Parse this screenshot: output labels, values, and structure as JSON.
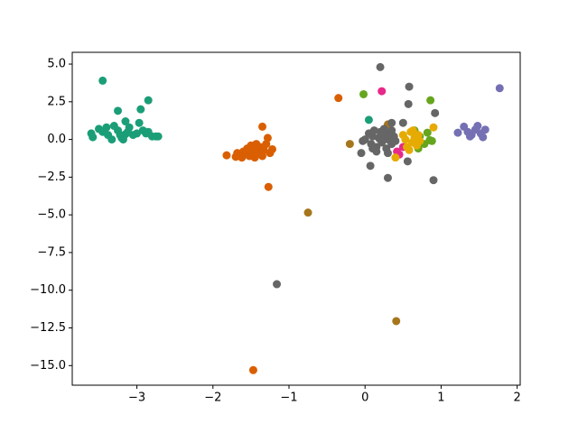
{
  "chart_data": {
    "type": "scatter",
    "xlim": [
      -3.85,
      2.04
    ],
    "ylim": [
      -16.3,
      5.78
    ],
    "xticks": [
      {
        "value": -3,
        "label": "−3"
      },
      {
        "value": -2,
        "label": "−2"
      },
      {
        "value": -1,
        "label": "−1"
      },
      0,
      1,
      2
    ],
    "yticks": [
      {
        "value": -15,
        "label": "−15.0"
      },
      {
        "value": -12.5,
        "label": "−12.5"
      },
      {
        "value": -10,
        "label": "−10.0"
      },
      {
        "value": -7.5,
        "label": "−7.5"
      },
      {
        "value": -5,
        "label": "−5.0"
      },
      {
        "value": -2.5,
        "label": "−2.5"
      },
      {
        "value": 0,
        "label": "0.0"
      },
      {
        "value": 2.5,
        "label": "2.5"
      },
      {
        "value": 5,
        "label": "5.0"
      }
    ],
    "series": [
      {
        "color": "#1b9e77",
        "x": [
          -3.6,
          -3.58,
          -3.5,
          -3.45,
          -3.4,
          -3.38,
          -3.33,
          -3.3,
          -3.25,
          -3.22,
          -3.2,
          -3.18,
          -3.15,
          -3.12,
          -3.1,
          -3.05,
          -3.0,
          -2.97,
          -2.92,
          -2.88,
          -2.85,
          -2.8,
          -2.75,
          -2.72,
          -3.45,
          -2.85,
          -2.95,
          -3.25,
          0.05,
          -3.15
        ],
        "y": [
          0.4,
          0.15,
          0.7,
          0.5,
          0.8,
          0.3,
          0.0,
          0.9,
          0.6,
          0.3,
          0.1,
          0.0,
          1.2,
          0.5,
          0.8,
          0.3,
          0.4,
          1.1,
          0.6,
          0.4,
          0.5,
          0.2,
          0.2,
          0.2,
          3.9,
          2.6,
          2.0,
          1.9,
          1.3,
          0.35
        ]
      },
      {
        "color": "#d95f02",
        "x": [
          -1.82,
          -1.7,
          -1.68,
          -1.62,
          -1.6,
          -1.57,
          -1.55,
          -1.52,
          -1.5,
          -1.48,
          -1.45,
          -1.43,
          -1.4,
          -1.38,
          -1.35,
          -1.33,
          -1.3,
          -1.28,
          -1.25,
          -1.22,
          -1.47,
          -1.42,
          -1.35,
          -1.27,
          -1.47,
          -0.35
        ],
        "y": [
          -1.05,
          -1.15,
          -0.9,
          -1.2,
          -0.8,
          -1.0,
          -0.6,
          -1.1,
          -0.4,
          -0.8,
          -1.2,
          -0.3,
          -0.9,
          -0.5,
          -1.1,
          -0.7,
          -0.3,
          0.1,
          -0.9,
          -0.65,
          -0.6,
          -0.9,
          0.85,
          -3.15,
          -15.3,
          2.75
        ]
      },
      {
        "color": "#7570b3",
        "x": [
          1.22,
          1.3,
          1.35,
          1.4,
          1.45,
          1.48,
          1.52,
          1.55,
          1.58,
          1.38,
          1.77
        ],
        "y": [
          0.45,
          0.85,
          0.5,
          0.3,
          0.65,
          0.9,
          0.4,
          0.15,
          0.65,
          0.2,
          3.4
        ]
      },
      {
        "color": "#e7298a",
        "x": [
          0.22,
          0.45,
          0.42,
          0.5
        ],
        "y": [
          3.2,
          -1.0,
          -0.8,
          -0.5
        ]
      },
      {
        "color": "#66a61e",
        "x": [
          -0.02,
          0.86,
          0.65,
          0.72,
          0.78,
          0.82,
          0.85,
          0.7,
          0.88
        ],
        "y": [
          3.0,
          2.6,
          0.6,
          0.2,
          -0.3,
          0.45,
          -0.05,
          -0.6,
          -0.1
        ]
      },
      {
        "color": "#e6ab02",
        "x": [
          0.5,
          0.55,
          0.6,
          0.62,
          0.65,
          0.68,
          0.7,
          0.72,
          0.58,
          0.53,
          0.63,
          0.9,
          0.4
        ],
        "y": [
          0.3,
          -0.5,
          0.5,
          -0.2,
          0.1,
          -0.4,
          0.3,
          -0.1,
          -0.7,
          0.0,
          0.6,
          0.8,
          -1.2
        ]
      },
      {
        "color": "#a6761d",
        "x": [
          -0.75,
          0.41,
          -0.2,
          0.3
        ],
        "y": [
          -4.85,
          -12.05,
          -0.3,
          1.0
        ]
      },
      {
        "color": "#666666",
        "x": [
          0.0,
          0.05,
          0.08,
          0.1,
          0.12,
          0.15,
          0.18,
          0.2,
          0.22,
          0.25,
          0.28,
          0.3,
          0.33,
          0.35,
          0.38,
          0.4,
          0.15,
          0.25,
          0.2,
          0.3,
          0.1,
          0.35,
          0.2,
          0.58,
          0.57,
          0.92,
          0.9,
          0.3,
          0.07,
          -0.05,
          0.56,
          -1.16,
          0.5,
          0.35,
          -0.03
        ],
        "y": [
          0.0,
          0.4,
          -0.3,
          0.2,
          0.6,
          -0.5,
          0.1,
          0.5,
          -0.2,
          0.3,
          -0.6,
          0.0,
          0.4,
          -0.3,
          0.2,
          -0.1,
          -0.8,
          0.7,
          0.0,
          -0.9,
          -0.6,
          0.6,
          4.8,
          3.5,
          2.35,
          1.75,
          -2.7,
          -2.55,
          -1.75,
          -0.9,
          -1.45,
          -9.6,
          1.1,
          1.1,
          -0.1
        ]
      }
    ]
  }
}
